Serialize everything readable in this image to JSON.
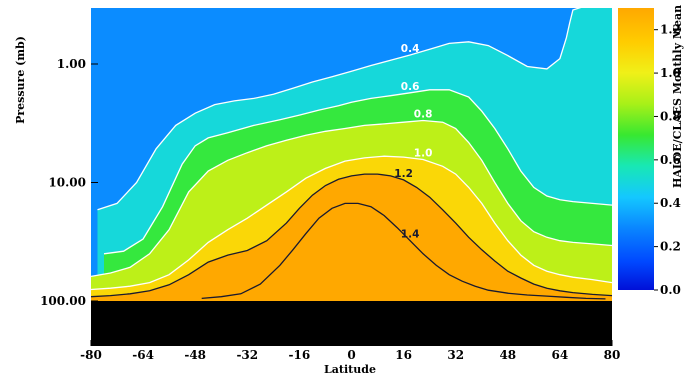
{
  "chart_data": {
    "type": "heatmap",
    "xlabel": "Latitude",
    "ylabel": "Pressure (mb)",
    "colorbar_label": "HALOE/CLAES Monthly Mean",
    "x_ticks": [
      "-80",
      "-64",
      "-48",
      "-32",
      "-16",
      "0",
      "16",
      "32",
      "48",
      "64",
      "80"
    ],
    "y_ticks": [
      "1.00",
      "10.00",
      "100.00"
    ],
    "colorbar_ticks": [
      "0.0",
      "0.2",
      "0.4",
      "0.6",
      "0.8",
      "1.0",
      "1.2"
    ],
    "xlim": [
      -80,
      80
    ],
    "ylim": [
      100,
      0.3
    ],
    "y_scale": "log",
    "colorbar_range": [
      0.0,
      1.3
    ],
    "colorbar_position": "right",
    "grid": false,
    "contours": [
      {
        "level": 0.4,
        "label": "0.4",
        "color": "#ffffff",
        "x": [
          -78,
          -72,
          -66,
          -60,
          -54,
          -48,
          -42,
          -36,
          -30,
          -24,
          -18,
          -12,
          -6,
          0,
          6,
          12,
          18,
          24,
          30,
          36,
          42,
          48,
          54,
          60,
          64,
          66,
          67,
          68,
          74,
          80
        ],
        "y": [
          17,
          15,
          10,
          5.2,
          3.3,
          2.6,
          2.2,
          2.05,
          1.95,
          1.8,
          1.6,
          1.42,
          1.28,
          1.15,
          1.03,
          0.93,
          0.84,
          0.75,
          0.67,
          0.65,
          0.7,
          0.85,
          1.05,
          1.1,
          0.9,
          0.6,
          0.45,
          0.35,
          0.31,
          0.3
        ]
      },
      {
        "level": 0.6,
        "label": "0.6",
        "color": "#ffffff",
        "x": [
          -76,
          -70,
          -64,
          -58,
          -52,
          -48,
          -44,
          -38,
          -30,
          -22,
          -16,
          -10,
          -4,
          0,
          6,
          12,
          18,
          24,
          30,
          36,
          40,
          44,
          48,
          52,
          56,
          60,
          64,
          68,
          74,
          80
        ],
        "y": [
          40,
          38,
          30,
          16,
          7,
          4.9,
          4.2,
          3.8,
          3.3,
          2.95,
          2.7,
          2.45,
          2.25,
          2.1,
          1.95,
          1.85,
          1.75,
          1.65,
          1.65,
          1.9,
          2.5,
          3.5,
          5.2,
          8,
          11,
          13,
          14,
          14.5,
          15,
          15.5
        ]
      },
      {
        "level": 0.8,
        "label": "0.8",
        "color": "#ffffff",
        "x": [
          -80,
          -74,
          -68,
          -62,
          -56,
          -50,
          -44,
          -38,
          -32,
          -26,
          -20,
          -14,
          -8,
          -2,
          4,
          10,
          16,
          22,
          28,
          32,
          36,
          40,
          44,
          48,
          52,
          56,
          60,
          64,
          68,
          74,
          80
        ],
        "y": [
          62,
          58,
          52,
          40,
          25,
          12,
          8,
          6.5,
          5.6,
          4.9,
          4.4,
          4,
          3.7,
          3.5,
          3.3,
          3.2,
          3.1,
          3,
          3.1,
          3.5,
          4.6,
          6.5,
          10,
          15,
          21,
          26,
          29,
          31,
          32,
          33,
          34
        ]
      },
      {
        "level": 1.0,
        "label": "1.0",
        "color": "#ffffff",
        "x": [
          -80,
          -74,
          -68,
          -62,
          -56,
          -50,
          -44,
          -38,
          -32,
          -26,
          -20,
          -14,
          -8,
          -2,
          4,
          10,
          16,
          22,
          28,
          32,
          36,
          40,
          44,
          48,
          52,
          56,
          60,
          64,
          68,
          74,
          80
        ],
        "y": [
          80,
          78,
          75,
          70,
          60,
          45,
          32,
          25,
          20,
          15.5,
          12,
          9.2,
          7.6,
          6.6,
          6.2,
          6,
          6.1,
          6.4,
          7.3,
          8.5,
          11,
          15,
          22,
          31,
          41,
          50,
          56,
          60,
          63,
          66,
          70
        ]
      },
      {
        "level": 1.2,
        "label": "1.2",
        "color": "#1a1a2e",
        "x": [
          -80,
          -74,
          -68,
          -62,
          -56,
          -50,
          -44,
          -38,
          -32,
          -26,
          -20,
          -16,
          -12,
          -8,
          -4,
          0,
          4,
          8,
          12,
          16,
          20,
          24,
          28,
          32,
          36,
          40,
          44,
          48,
          52,
          56,
          60,
          64,
          68,
          74,
          80
        ],
        "y": [
          92,
          90,
          87,
          82,
          73,
          60,
          47,
          41,
          37.5,
          31,
          22,
          16.5,
          12.8,
          10.6,
          9.4,
          8.8,
          8.5,
          8.5,
          8.8,
          9.5,
          11,
          13.3,
          17,
          22,
          29,
          37,
          46,
          56,
          64,
          72,
          78,
          82,
          85,
          88,
          90
        ]
      },
      {
        "level": 1.4,
        "label": "1.4",
        "color": "#1a1a2e",
        "x": [
          -46,
          -40,
          -34,
          -28,
          -22,
          -18,
          -14,
          -10,
          -6,
          -2,
          2,
          6,
          10,
          14,
          18,
          22,
          26,
          30,
          34,
          38,
          42,
          48,
          54,
          60,
          66,
          72,
          78
        ],
        "y": [
          95,
          92,
          87,
          72,
          50,
          37,
          27,
          20,
          16.5,
          15,
          15,
          16,
          19,
          24,
          31,
          40,
          50,
          60,
          68,
          75,
          81,
          86,
          89,
          91,
          93,
          95,
          96
        ]
      }
    ]
  }
}
